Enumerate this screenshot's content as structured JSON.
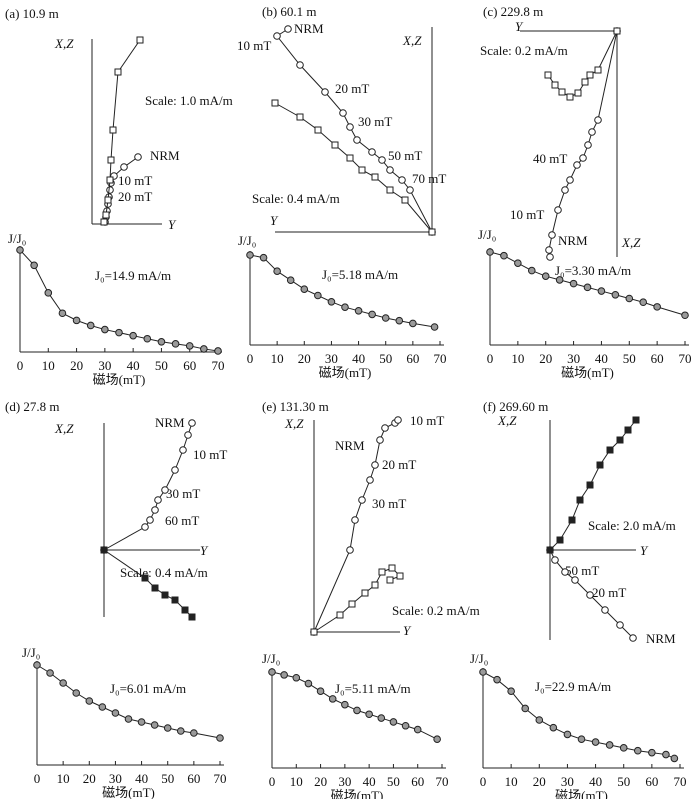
{
  "chart_data": [
    {
      "type": "zijderveld",
      "title": "(a) 10.9 m",
      "xlabel": "Y",
      "ylabel": "X,Z",
      "scale": "Scale: 1.0 mA/m",
      "annotations": [
        "NRM",
        "10 mT",
        "20 mT"
      ],
      "xlim": [
        0,
        70
      ],
      "ylim": [
        0,
        185
      ],
      "series": [
        {
          "marker": "circle",
          "fill": "#ffffff",
          "x": [
            46,
            32,
            22,
            19,
            18,
            17,
            16,
            15,
            14,
            13
          ],
          "values": [
            67,
            57,
            48,
            41,
            34,
            27,
            20,
            13,
            7,
            2
          ]
        },
        {
          "marker": "square",
          "fill": "#ffffff",
          "x": [
            48,
            26,
            21,
            19,
            18,
            16,
            14,
            12
          ],
          "values": [
            184,
            152,
            94,
            64,
            44,
            24,
            9,
            2
          ]
        }
      ]
    },
    {
      "type": "zijderveld",
      "title": "(b) 60.1 m",
      "xlabel": "Y",
      "ylabel": "X,Z",
      "scale": "Scale: 0.4 mA/m",
      "annotations": [
        "NRM",
        "10 mT",
        "20 mT",
        "30 mT",
        "50 mT",
        "70 mT"
      ],
      "xlim": [
        -157,
        0
      ],
      "ylim": [
        0,
        205
      ],
      "series": [
        {
          "marker": "circle",
          "fill": "#ffffff",
          "x": [
            -144,
            -155,
            -132,
            -107,
            -89,
            -82,
            -75,
            -60,
            -50,
            -42,
            -30,
            -22,
            0
          ],
          "values": [
            203,
            196,
            167,
            140,
            119,
            105,
            92,
            80,
            72,
            62,
            52,
            42,
            0
          ]
        },
        {
          "marker": "square",
          "fill": "#ffffff",
          "x": [
            -157,
            -132,
            -114,
            -97,
            -82,
            -70,
            -57,
            -42,
            -27,
            0
          ],
          "values": [
            129,
            115,
            102,
            87,
            74,
            62,
            55,
            42,
            32,
            0
          ]
        }
      ]
    },
    {
      "type": "zijderveld",
      "title": "(c) 229.8 m",
      "xlabel": "Y",
      "ylabel": "X,Z",
      "scale": "Scale: 0.2 mA/m",
      "annotations": [
        "40 mT",
        "10 mT",
        "NRM"
      ],
      "xlim": [
        -97,
        0
      ],
      "ylim": [
        -226,
        0
      ],
      "series": [
        {
          "marker": "circle",
          "fill": "#ffffff",
          "x": [
            0,
            -19,
            -25,
            -29,
            -34,
            -40,
            -47,
            -52,
            -59,
            -65,
            -68,
            -67
          ],
          "values": [
            0,
            -89,
            -101,
            -114,
            -127,
            -134,
            -149,
            -159,
            -179,
            -204,
            -219,
            -226
          ]
        },
        {
          "marker": "square",
          "fill": "#ffffff",
          "x": [
            0,
            -19,
            -27,
            -32,
            -39,
            -47,
            -55,
            -62,
            -69
          ],
          "values": [
            0,
            -39,
            -44,
            -51,
            -62,
            -66,
            -61,
            -54,
            -44
          ]
        }
      ]
    },
    {
      "type": "line",
      "ylabel": "J/J₀",
      "xlabel": "磁场(mT)",
      "annotation": "J₀=14.9 mA/m",
      "xlim": [
        0,
        70
      ],
      "ylim": [
        0,
        1
      ],
      "xticks": [
        0,
        10,
        20,
        30,
        40,
        50,
        60,
        70
      ],
      "x": [
        0,
        5,
        10,
        15,
        20,
        25,
        30,
        35,
        40,
        45,
        50,
        55,
        60,
        65,
        70
      ],
      "values": [
        1.0,
        0.85,
        0.58,
        0.38,
        0.31,
        0.26,
        0.22,
        0.19,
        0.16,
        0.13,
        0.1,
        0.08,
        0.06,
        0.03,
        0.01
      ]
    },
    {
      "type": "line",
      "ylabel": "J/J₀",
      "xlabel": "磁场(mT)",
      "annotation": "J₀=5.18 mA/m",
      "xlim": [
        0,
        70
      ],
      "ylim": [
        0,
        1
      ],
      "xticks": [
        0,
        10,
        20,
        30,
        40,
        50,
        60,
        70
      ],
      "x": [
        0,
        5,
        10,
        15,
        20,
        25,
        30,
        35,
        40,
        45,
        50,
        55,
        60,
        68
      ],
      "values": [
        1.0,
        0.97,
        0.82,
        0.72,
        0.62,
        0.55,
        0.48,
        0.42,
        0.38,
        0.34,
        0.3,
        0.27,
        0.24,
        0.2
      ]
    },
    {
      "type": "line",
      "ylabel": "J/J₀",
      "xlabel": "磁场(mT)",
      "annotation": "J₀=3.30 mA/m",
      "xlim": [
        0,
        70
      ],
      "ylim": [
        0,
        1
      ],
      "xticks": [
        0,
        10,
        20,
        30,
        40,
        50,
        60,
        70
      ],
      "x": [
        0,
        5,
        10,
        15,
        20,
        25,
        30,
        35,
        40,
        45,
        50,
        55,
        60,
        70
      ],
      "values": [
        1.0,
        0.96,
        0.88,
        0.8,
        0.74,
        0.7,
        0.66,
        0.62,
        0.58,
        0.54,
        0.5,
        0.46,
        0.41,
        0.32
      ]
    },
    {
      "type": "zijderveld",
      "title": "(d) 27.8 m",
      "xlabel": "Y",
      "ylabel": "X,Z",
      "scale": "Scale: 0.4 mA/m",
      "annotations": [
        "NRM",
        "10 mT",
        "30 mT",
        "60 mT"
      ],
      "xlim": [
        0,
        96
      ],
      "ylim": [
        -67,
        127
      ],
      "series": [
        {
          "marker": "circle",
          "fill": "#ffffff",
          "x": [
            0,
            41,
            46,
            51,
            54,
            61,
            71,
            79,
            84,
            88
          ],
          "values": [
            0,
            23,
            30,
            40,
            50,
            60,
            80,
            100,
            115,
            127
          ]
        },
        {
          "marker": "square",
          "fill": "#222222",
          "x": [
            0,
            41,
            51,
            61,
            71,
            81,
            88
          ],
          "values": [
            0,
            -28,
            -38,
            -45,
            -50,
            -60,
            -67
          ]
        }
      ]
    },
    {
      "type": "zijderveld",
      "title": "(e) 131.30 m",
      "xlabel": "Y",
      "ylabel": "X,Z",
      "scale": "Scale: 0.2 mA/m",
      "annotations": [
        "NRM",
        "10 mT",
        "20 mT",
        "30 mT"
      ],
      "xlim": [
        0,
        86
      ],
      "ylim": [
        0,
        212
      ],
      "series": [
        {
          "marker": "circle",
          "fill": "#ffffff",
          "x": [
            0,
            36,
            41,
            48,
            56,
            61,
            66,
            71,
            81,
            84
          ],
          "values": [
            0,
            82,
            112,
            132,
            152,
            167,
            192,
            204,
            209,
            212
          ]
        },
        {
          "marker": "square",
          "fill": "#ffffff",
          "x": [
            0,
            26,
            38,
            51,
            61,
            68,
            78,
            86,
            76
          ],
          "values": [
            0,
            17,
            28,
            39,
            47,
            60,
            64,
            56,
            52
          ]
        }
      ]
    },
    {
      "type": "zijderveld",
      "title": "(f) 269.60 m",
      "xlabel": "Y",
      "ylabel": "X,Z",
      "scale": "Scale: 2.0 mA/m",
      "annotations": [
        "50 mT",
        "20 mT",
        "NRM"
      ],
      "xlim": [
        0,
        86
      ],
      "ylim": [
        -90,
        130
      ],
      "series": [
        {
          "marker": "circle",
          "fill": "#ffffff",
          "x": [
            0,
            5,
            15,
            25,
            40,
            55,
            70,
            83
          ],
          "values": [
            0,
            -10,
            -22,
            -30,
            -45,
            -60,
            -75,
            -88
          ]
        },
        {
          "marker": "square",
          "fill": "#222222",
          "x": [
            0,
            10,
            22,
            30,
            40,
            50,
            60,
            70,
            78,
            86
          ],
          "values": [
            0,
            10,
            30,
            50,
            65,
            85,
            100,
            110,
            120,
            130
          ]
        }
      ]
    },
    {
      "type": "line",
      "ylabel": "J/J₀",
      "xlabel": "磁场(mT)",
      "annotation": "J₀=6.01 mA/m",
      "xlim": [
        0,
        70
      ],
      "ylim": [
        0,
        1
      ],
      "xticks": [
        0,
        10,
        20,
        30,
        40,
        50,
        60,
        70
      ],
      "x": [
        0,
        5,
        10,
        15,
        20,
        25,
        30,
        35,
        40,
        45,
        50,
        55,
        60,
        70
      ],
      "values": [
        1.0,
        0.92,
        0.82,
        0.72,
        0.64,
        0.58,
        0.52,
        0.46,
        0.43,
        0.4,
        0.37,
        0.34,
        0.32,
        0.27
      ]
    },
    {
      "type": "line",
      "ylabel": "J/J₀",
      "xlabel": "磁场(mT)",
      "annotation": "J₀=5.11 mA/m",
      "xlim": [
        0,
        70
      ],
      "ylim": [
        0,
        1
      ],
      "xticks": [
        0,
        10,
        20,
        30,
        40,
        50,
        60,
        70
      ],
      "x": [
        0,
        5,
        10,
        15,
        20,
        25,
        30,
        35,
        40,
        45,
        50,
        55,
        60,
        68
      ],
      "values": [
        1.0,
        0.97,
        0.94,
        0.88,
        0.8,
        0.72,
        0.66,
        0.6,
        0.56,
        0.52,
        0.48,
        0.44,
        0.4,
        0.3
      ]
    },
    {
      "type": "line",
      "ylabel": "J/J₀",
      "xlabel": "磁场(mT)",
      "annotation": "J₀=22.9 mA/m",
      "xlim": [
        0,
        70
      ],
      "ylim": [
        0,
        1
      ],
      "xticks": [
        0,
        10,
        20,
        30,
        40,
        50,
        60,
        70
      ],
      "x": [
        0,
        5,
        10,
        15,
        20,
        25,
        30,
        35,
        40,
        45,
        50,
        55,
        60,
        65,
        68
      ],
      "values": [
        1.0,
        0.92,
        0.8,
        0.62,
        0.5,
        0.42,
        0.35,
        0.3,
        0.27,
        0.24,
        0.21,
        0.18,
        0.16,
        0.14,
        0.1
      ]
    }
  ]
}
